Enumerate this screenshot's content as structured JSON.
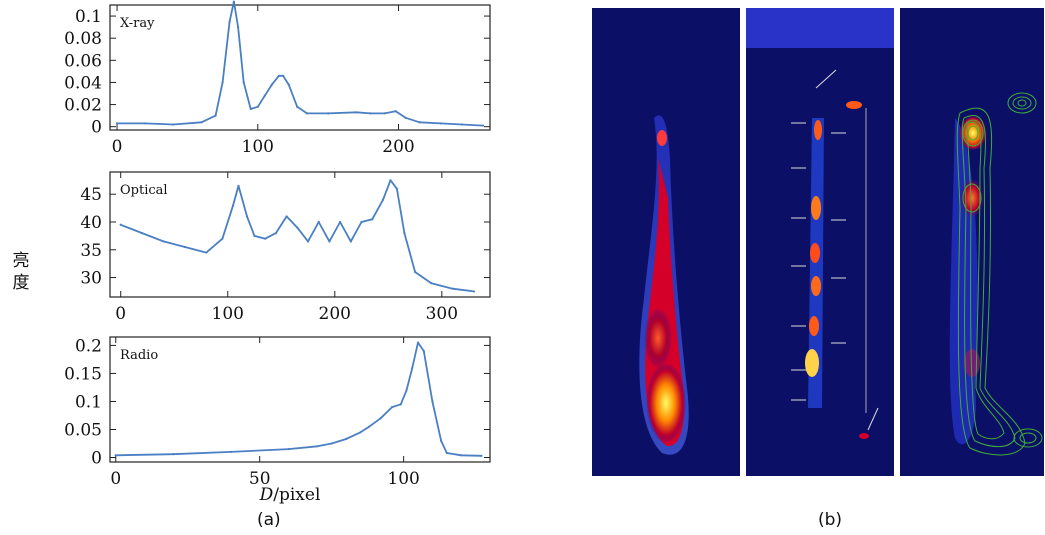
{
  "figure": {
    "y_axis_label": "亮度",
    "x_axis_label": {
      "var": "D",
      "unit": "/pixel"
    },
    "caption_a": "(a)",
    "caption_b": "(b)"
  },
  "colors": {
    "line": "#4a7fc4",
    "axis": "#222222",
    "panel_bg": "#0b0f66"
  },
  "chart_data": [
    {
      "type": "line",
      "title": "X-ray",
      "xlim": [
        -5,
        265
      ],
      "ylim": [
        -0.003,
        0.11
      ],
      "xticks": [
        0,
        100,
        200
      ],
      "yticks": [
        0,
        0.02,
        0.04,
        0.06,
        0.08,
        0.1
      ],
      "ytick_labels": [
        "0",
        "0.02",
        "0.04",
        "0.06",
        "0.08",
        "0.1"
      ],
      "series": [
        {
          "x": [
            0,
            20,
            40,
            60,
            70,
            75,
            80,
            83,
            86,
            90,
            95,
            100,
            105,
            110,
            115,
            118,
            122,
            128,
            135,
            150,
            170,
            180,
            190,
            198,
            205,
            215,
            230,
            245,
            260
          ],
          "y": [
            0.003,
            0.003,
            0.002,
            0.004,
            0.01,
            0.04,
            0.095,
            0.113,
            0.09,
            0.04,
            0.016,
            0.018,
            0.028,
            0.038,
            0.046,
            0.046,
            0.038,
            0.018,
            0.012,
            0.012,
            0.013,
            0.012,
            0.012,
            0.014,
            0.008,
            0.004,
            0.003,
            0.002,
            0.001
          ]
        }
      ]
    },
    {
      "type": "line",
      "title": "Optical",
      "xlim": [
        -10,
        345
      ],
      "ylim": [
        26.5,
        49
      ],
      "xticks": [
        0,
        100,
        200,
        300
      ],
      "yticks": [
        30,
        35,
        40,
        45
      ],
      "ytick_labels": [
        "30",
        "35",
        "40",
        "45"
      ],
      "series": [
        {
          "x": [
            0,
            20,
            40,
            60,
            80,
            95,
            105,
            110,
            118,
            125,
            135,
            145,
            155,
            165,
            175,
            185,
            195,
            205,
            215,
            225,
            235,
            245,
            252,
            258,
            265,
            275,
            290,
            310,
            330
          ],
          "y": [
            39.5,
            38.0,
            36.5,
            35.5,
            34.5,
            37.0,
            43.0,
            46.5,
            41.0,
            37.5,
            37.0,
            38.0,
            41.0,
            39.0,
            36.5,
            40.0,
            36.5,
            40.0,
            36.5,
            40.0,
            40.5,
            44.0,
            47.5,
            46.0,
            38.0,
            31.0,
            29.0,
            28.0,
            27.5
          ]
        }
      ]
    },
    {
      "type": "line",
      "title": "Radio",
      "xlim": [
        -2,
        130
      ],
      "ylim": [
        -0.008,
        0.215
      ],
      "xticks": [
        0,
        50,
        100
      ],
      "yticks": [
        0,
        0.05,
        0.1,
        0.15,
        0.2
      ],
      "ytick_labels": [
        "0",
        "0.05",
        "0.1",
        "0.15",
        "0.2"
      ],
      "series": [
        {
          "x": [
            0,
            20,
            40,
            60,
            70,
            75,
            80,
            85,
            88,
            92,
            96,
            99,
            101,
            103,
            105,
            107,
            110,
            113,
            115,
            120,
            127
          ],
          "y": [
            0.004,
            0.006,
            0.01,
            0.015,
            0.02,
            0.025,
            0.033,
            0.045,
            0.055,
            0.07,
            0.09,
            0.095,
            0.12,
            0.16,
            0.205,
            0.19,
            0.1,
            0.03,
            0.008,
            0.004,
            0.003
          ]
        }
      ]
    }
  ]
}
